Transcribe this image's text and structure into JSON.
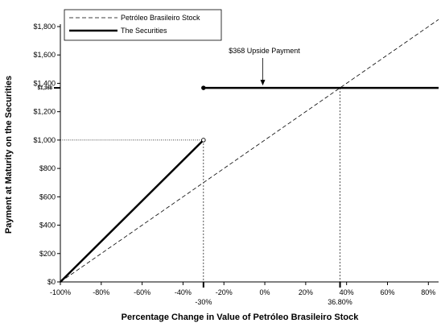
{
  "chart_data": {
    "type": "line",
    "xlabel": "Percentage Change in Value of Petróleo Brasileiro Stock",
    "ylabel": "Payment at Maturity on the Securities",
    "xlim": [
      -100,
      85
    ],
    "ylim": [
      0,
      1800
    ],
    "x_ticks": [
      {
        "value": -100,
        "label": "-100%"
      },
      {
        "value": -80,
        "label": "-80%"
      },
      {
        "value": -60,
        "label": "-60%"
      },
      {
        "value": -40,
        "label": "-40%"
      },
      {
        "value": -20,
        "label": "-20%"
      },
      {
        "value": 0,
        "label": "0%"
      },
      {
        "value": 20,
        "label": "20%"
      },
      {
        "value": 40,
        "label": "40%"
      },
      {
        "value": 60,
        "label": "60%"
      },
      {
        "value": 80,
        "label": "80%"
      }
    ],
    "y_ticks": [
      {
        "value": 0,
        "label": "$0"
      },
      {
        "value": 200,
        "label": "$200"
      },
      {
        "value": 400,
        "label": "$400"
      },
      {
        "value": 600,
        "label": "$600"
      },
      {
        "value": 800,
        "label": "$800"
      },
      {
        "value": 1000,
        "label": "$1,000"
      },
      {
        "value": 1200,
        "label": "$1,200"
      },
      {
        "value": 1400,
        "label": "$1,400"
      },
      {
        "value": 1600,
        "label": "$1,600"
      },
      {
        "value": 1800,
        "label": "$1,800"
      }
    ],
    "series": [
      {
        "name": "Petróleo Brasileiro Stock",
        "style": "dashed",
        "points": [
          [
            -100,
            0
          ],
          [
            85,
            1850
          ]
        ]
      },
      {
        "name": "The Securities",
        "style": "solid-bold",
        "segments": [
          [
            [
              -100,
              0
            ],
            [
              -30,
              1000
            ]
          ],
          [
            [
              -30,
              1368
            ],
            [
              85,
              1368
            ]
          ]
        ]
      }
    ],
    "markers": [
      {
        "x": -30,
        "y": 1000,
        "fill": "open"
      },
      {
        "x": -30,
        "y": 1368,
        "fill": "filled"
      }
    ],
    "annotations": {
      "upside_label": "$368 Upside Payment",
      "upside_arrow_x": -1,
      "y_marker": {
        "value": 1368,
        "label": "$1,368"
      },
      "x_marker_1": {
        "value": -30,
        "label": "-30%"
      },
      "x_marker_2": {
        "value": 36.8,
        "label": "36.80%"
      }
    },
    "legend_position": "top-left",
    "grid": false,
    "colors": {
      "line": "#000000",
      "background": "#ffffff"
    }
  }
}
